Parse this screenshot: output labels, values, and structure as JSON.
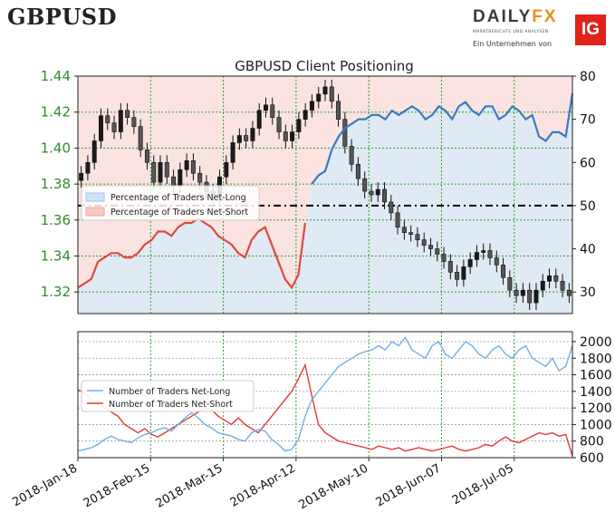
{
  "header": {
    "symbol": "GBPUSD",
    "brand_daily": "DAILY",
    "brand_fx": "FX",
    "brand_tagline": "MARKTBERICHTE UND ANALYSEN",
    "brand_sub": "Ein Unternehmen von",
    "ig_label": "IG"
  },
  "colors": {
    "long": "#3a7bbf",
    "short": "#e0483d",
    "long_light": "#6fb0e6",
    "short_light": "#e53935",
    "price_axis": "#2e8b2e",
    "grid": "#2e9e2e"
  },
  "chart_data": [
    {
      "type": "line",
      "title": "GBPUSD Client Positioning",
      "x_ticks": [
        "2018-Jan-18",
        "2018-Feb-15",
        "2018-Mar-15",
        "2018-Apr-12",
        "2018-May-10",
        "2018-Jun-07",
        "2018-Jul-05"
      ],
      "y_left_ticks": [
        "1.32",
        "1.34",
        "1.36",
        "1.38",
        "1.40",
        "1.42",
        "1.44"
      ],
      "y_left_lim": [
        1.308,
        1.44
      ],
      "y_right_ticks": [
        "30",
        "40",
        "50",
        "60",
        "70",
        "80"
      ],
      "y_right_lim": [
        25,
        80
      ],
      "reference_line": 50,
      "legend": {
        "placement": "upper-left",
        "entries": [
          "Percentage of Traders Net-Long",
          "Percentage of Traders Net-Short"
        ]
      },
      "price_close": [
        1.386,
        1.392,
        1.404,
        1.418,
        1.414,
        1.409,
        1.421,
        1.417,
        1.412,
        1.399,
        1.392,
        1.381,
        1.392,
        1.384,
        1.379,
        1.388,
        1.393,
        1.386,
        1.381,
        1.376,
        1.373,
        1.384,
        1.392,
        1.403,
        1.407,
        1.404,
        1.411,
        1.421,
        1.424,
        1.417,
        1.409,
        1.404,
        1.409,
        1.416,
        1.421,
        1.426,
        1.43,
        1.434,
        1.426,
        1.416,
        1.401,
        1.391,
        1.383,
        1.376,
        1.374,
        1.377,
        1.37,
        1.364,
        1.356,
        1.353,
        1.352,
        1.349,
        1.346,
        1.344,
        1.341,
        1.337,
        1.331,
        1.327,
        1.334,
        1.338,
        1.342,
        1.343,
        1.339,
        1.335,
        1.328,
        1.321,
        1.318,
        1.321,
        1.314,
        1.321,
        1.326,
        1.329,
        1.326,
        1.321,
        1.318
      ],
      "series": [
        {
          "name": "Percentage of Traders Net-Long",
          "values": [
            31,
            32,
            33,
            37,
            38,
            39,
            39,
            38,
            38,
            39,
            41,
            42,
            44,
            44,
            43,
            45,
            46,
            46,
            47,
            46,
            45,
            43,
            42,
            41,
            39,
            38,
            42,
            44,
            45,
            41,
            37,
            33,
            31,
            34,
            46,
            55,
            57,
            58,
            63,
            66,
            68,
            69,
            70,
            70,
            71,
            71,
            70,
            72,
            71,
            72,
            73,
            72,
            70,
            71,
            73,
            72,
            70,
            73,
            74,
            72,
            71,
            73,
            73,
            70,
            71,
            73,
            72,
            70,
            71,
            66,
            65,
            67,
            67,
            66,
            76
          ]
        },
        {
          "name": "Percentage of Traders Net-Short",
          "values": [
            69,
            68,
            67,
            63,
            62,
            61,
            61,
            62,
            62,
            61,
            59,
            58,
            56,
            56,
            57,
            55,
            54,
            54,
            53,
            54,
            55,
            57,
            58,
            59,
            61,
            62,
            58,
            56,
            55,
            59,
            63,
            67,
            69,
            66,
            54,
            45,
            43,
            42,
            37,
            34,
            32,
            31,
            30,
            30,
            29,
            29,
            30,
            28,
            29,
            28,
            27,
            28,
            30,
            29,
            27,
            28,
            30,
            27,
            26,
            28,
            29,
            27,
            27,
            30,
            29,
            27,
            28,
            30,
            29,
            34,
            35,
            33,
            33,
            34,
            24
          ]
        }
      ]
    },
    {
      "type": "line",
      "y_right_ticks": [
        "600",
        "800",
        "1000",
        "1200",
        "1400",
        "1600",
        "1800",
        "2000"
      ],
      "y_lim": [
        600,
        2120
      ],
      "legend": {
        "placement": "center-left",
        "entries": [
          "Number of Traders Net-Long",
          "Number of Traders Net-Short"
        ]
      },
      "series": [
        {
          "name": "Number of Traders Net-Long",
          "values": [
            680,
            700,
            720,
            760,
            820,
            860,
            820,
            800,
            780,
            840,
            880,
            900,
            940,
            960,
            920,
            1000,
            1080,
            1140,
            1080,
            1000,
            960,
            900,
            880,
            860,
            820,
            800,
            900,
            940,
            920,
            820,
            760,
            680,
            700,
            820,
            1100,
            1300,
            1400,
            1500,
            1600,
            1700,
            1750,
            1800,
            1850,
            1880,
            1900,
            1950,
            1900,
            2000,
            1950,
            2050,
            1900,
            1850,
            1800,
            1950,
            2000,
            1850,
            1800,
            1900,
            2000,
            1950,
            1850,
            1800,
            1900,
            1950,
            1850,
            1800,
            1900,
            1950,
            1800,
            1750,
            1700,
            1800,
            1650,
            1700,
            1950
          ]
        },
        {
          "name": "Number of Traders Net-Short",
          "values": [
            1420,
            1380,
            1300,
            1250,
            1200,
            1150,
            1100,
            1000,
            950,
            900,
            950,
            880,
            850,
            900,
            950,
            1000,
            1050,
            1100,
            1150,
            1200,
            1180,
            1100,
            1050,
            1000,
            1080,
            1000,
            950,
            900,
            1000,
            1100,
            1200,
            1300,
            1400,
            1550,
            1720,
            1350,
            1000,
            900,
            850,
            800,
            780,
            760,
            740,
            720,
            700,
            740,
            720,
            700,
            720,
            680,
            700,
            720,
            700,
            680,
            700,
            720,
            740,
            700,
            680,
            700,
            720,
            760,
            740,
            800,
            850,
            800,
            780,
            820,
            860,
            900,
            880,
            900,
            860,
            880,
            620
          ]
        }
      ]
    }
  ]
}
